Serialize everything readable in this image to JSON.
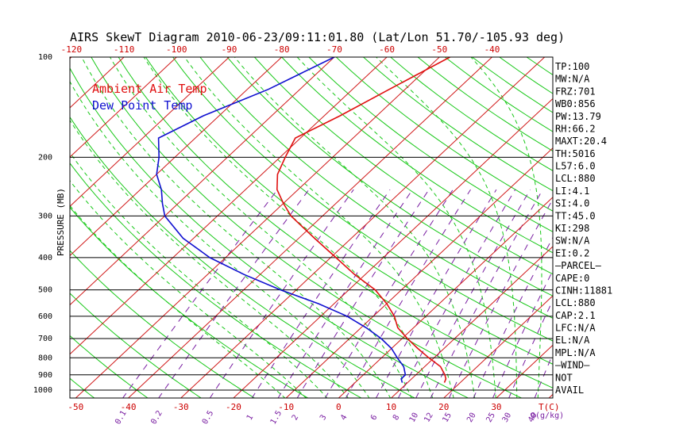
{
  "chart_data": {
    "type": "line",
    "title": "AIRS SkewT Diagram 2010-06-23/09:11:01.80 (Lat/Lon 51.70/-105.93 deg)",
    "ylabel": "PRESSURE (MB)",
    "y_scale": "log",
    "ylim": [
      1050,
      100
    ],
    "pressure_ticks": [
      "100",
      "200",
      "300",
      "400",
      "500",
      "600",
      "700",
      "800",
      "900",
      "1000"
    ],
    "top_temp_ticks": [
      "-120",
      "-110",
      "-100",
      "-90",
      "-80",
      "-70",
      "-60",
      "-50",
      "-40"
    ],
    "bottom_temp_ticks": [
      "-50",
      "-40",
      "-30",
      "-20",
      "-10",
      "0",
      "10",
      "20",
      "30"
    ],
    "bottom_temp_unit": "T(C)",
    "mixing_ratio_ticks": [
      "0.1",
      "0.2",
      "0.5",
      "1",
      "1.5",
      "2",
      "3",
      "4",
      "6",
      "8",
      "10",
      "12",
      "15",
      "20",
      "25",
      "30",
      "40"
    ],
    "mixing_ratio_unit": "Q(g/kg)",
    "legend": [
      "Ambient Air Temp",
      "Dew Point Temp"
    ],
    "legend_placement": "top-left",
    "colors": {
      "air": "#e01010",
      "dew": "#1010d0",
      "isotherm": "#d01818",
      "dry_adiabat": "#18c818",
      "moist_adiabat": "#18c818",
      "mixing_ratio": "#7a1fa2",
      "isobar": "#000000"
    },
    "series": [
      {
        "name": "Ambient Air Temp",
        "points": [
          [
            100,
            -48
          ],
          [
            125,
            -53
          ],
          [
            150,
            -57
          ],
          [
            175,
            -61
          ],
          [
            200,
            -59
          ],
          [
            225,
            -57
          ],
          [
            250,
            -54
          ],
          [
            275,
            -50
          ],
          [
            300,
            -46
          ],
          [
            350,
            -37
          ],
          [
            400,
            -29
          ],
          [
            450,
            -22
          ],
          [
            500,
            -15
          ],
          [
            550,
            -10
          ],
          [
            600,
            -6
          ],
          [
            650,
            -3
          ],
          [
            700,
            1
          ],
          [
            750,
            5
          ],
          [
            800,
            9
          ],
          [
            850,
            13
          ],
          [
            900,
            15.5
          ],
          [
            925,
            16.5
          ],
          [
            950,
            17
          ]
        ]
      },
      {
        "name": "Dew Point Temp",
        "points": [
          [
            100,
            -70
          ],
          [
            125,
            -76
          ],
          [
            150,
            -83
          ],
          [
            175,
            -87
          ],
          [
            200,
            -83
          ],
          [
            225,
            -80
          ],
          [
            250,
            -76
          ],
          [
            275,
            -73
          ],
          [
            300,
            -70
          ],
          [
            350,
            -62
          ],
          [
            400,
            -53
          ],
          [
            450,
            -43
          ],
          [
            500,
            -33
          ],
          [
            550,
            -23
          ],
          [
            600,
            -15
          ],
          [
            650,
            -9
          ],
          [
            700,
            -4
          ],
          [
            750,
            0
          ],
          [
            800,
            3
          ],
          [
            850,
            6
          ],
          [
            900,
            8
          ],
          [
            925,
            8
          ],
          [
            950,
            9
          ]
        ]
      }
    ]
  },
  "stats": [
    "TP:100",
    "MW:N/A",
    "FRZ:701",
    "WB0:856",
    "PW:13.79",
    "RH:66.2",
    "MAXT:20.4",
    "TH:5016",
    "L57:6.0",
    "LCL:880",
    "LI:4.1",
    "SI:4.0",
    "TT:45.0",
    "KI:298",
    "SW:N/A",
    "EI:0.2",
    "—PARCEL—",
    "CAPE:0",
    "CINH:11881",
    "LCL:880",
    "CAP:2.1",
    "LFC:N/A",
    "EL:N/A",
    "MPL:N/A",
    "—WIND—",
    "NOT",
    "AVAIL"
  ]
}
